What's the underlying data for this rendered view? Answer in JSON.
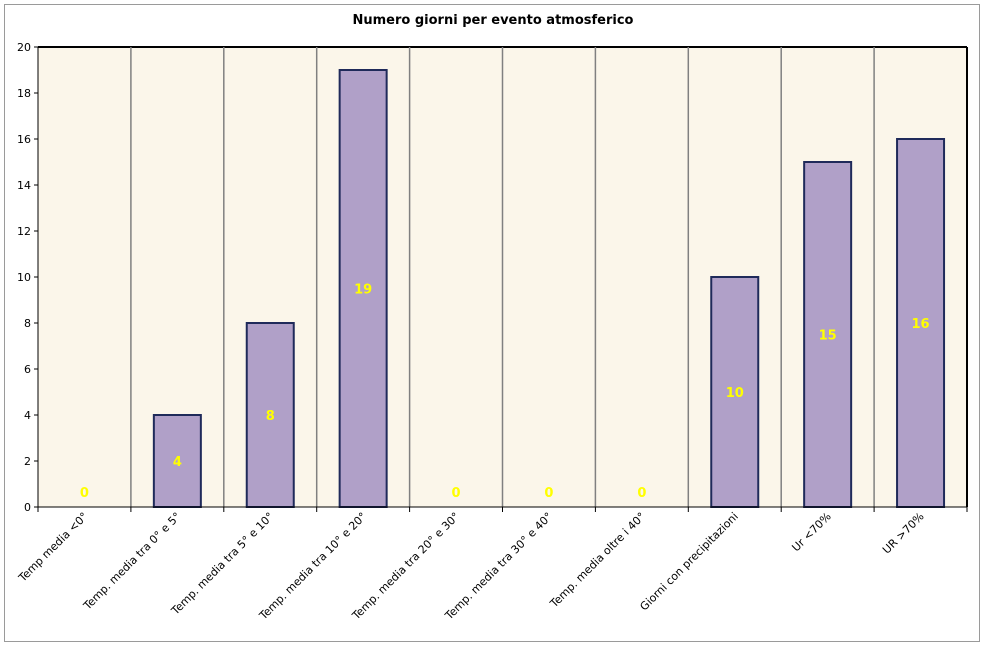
{
  "chart_data": {
    "type": "bar",
    "title": "Numero giorni per evento atmosferico",
    "xlabel": "",
    "ylabel": "",
    "categories": [
      "Temp media <0°",
      "Temp. media tra 0° e 5°",
      "Temp. media tra 5° e 10°",
      "Temp. media tra 10° e 20°",
      "Temp. media tra 20° e 30°",
      "Temp. media tra 30° e 40°",
      "Temp. media oltre i 40°",
      "Giorni con precipitazioni",
      "Ur <70%",
      "UR >70%"
    ],
    "values": [
      0,
      4,
      8,
      19,
      0,
      0,
      0,
      10,
      15,
      16
    ],
    "ylim": [
      0,
      20
    ],
    "yticks": [
      0,
      2,
      4,
      6,
      8,
      10,
      12,
      14,
      16,
      18,
      20
    ],
    "grid": "vertical",
    "legend": "none",
    "colors": {
      "bar_fill": "#b0a0c8",
      "bar_stroke": "#1f2a5a",
      "plot_bg": "#fbf6ea",
      "grid": "#808080",
      "data_label": "#ffff00"
    }
  }
}
